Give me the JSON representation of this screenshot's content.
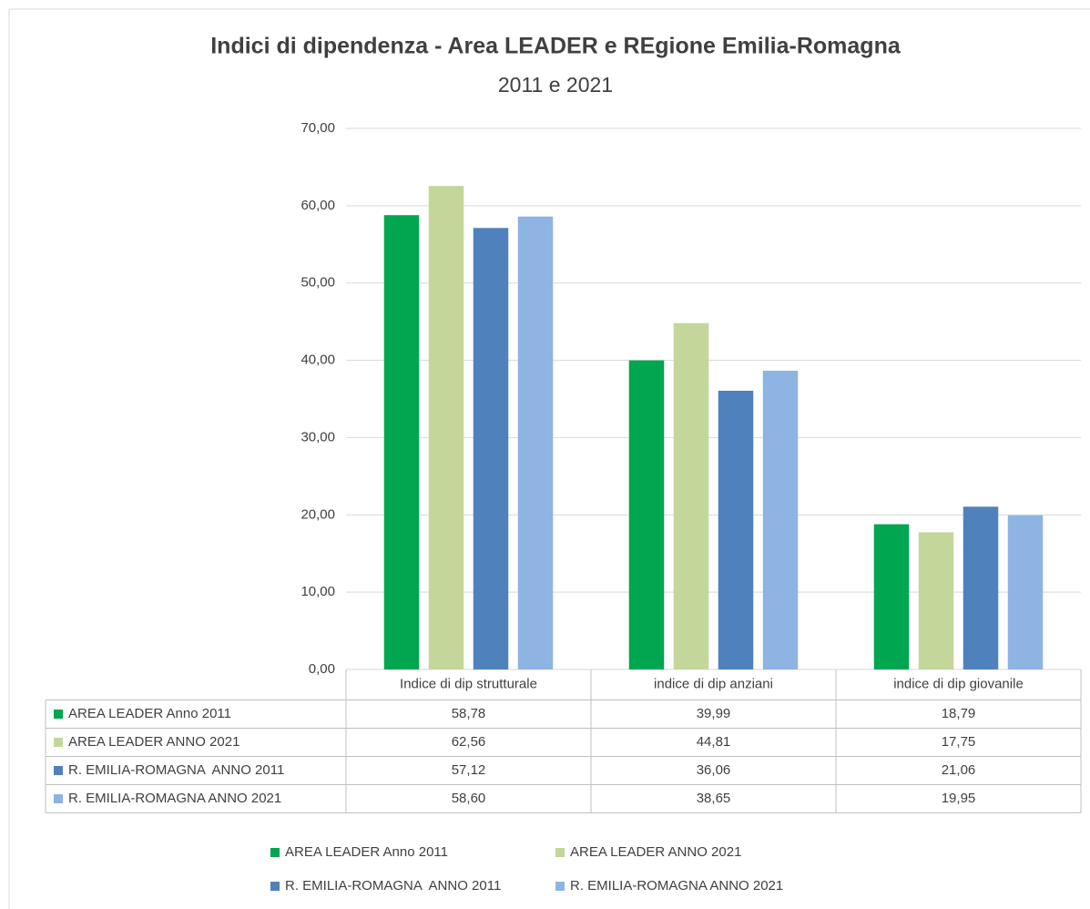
{
  "chart_data": {
    "type": "bar",
    "title": "Indici di dipendenza - Area LEADER e REgione Emilia-Romagna",
    "subtitle": "2011 e 2021",
    "categories": [
      "Indice di dip strutturale",
      "indice di dip anziani",
      "indice di dip giovanile"
    ],
    "series": [
      {
        "name": "AREA LEADER Anno 2011",
        "color": "#00a650",
        "values": [
          58.78,
          39.99,
          18.79
        ],
        "value_labels": [
          "58,78",
          "39,99",
          "18,79"
        ]
      },
      {
        "name": "AREA LEADER ANNO 2021",
        "color": "#c4d79b",
        "values": [
          62.56,
          44.81,
          17.75
        ],
        "value_labels": [
          "62,56",
          "44,81",
          "17,75"
        ]
      },
      {
        "name": "R. EMILIA-ROMAGNA  ANNO 2011",
        "color": "#4f81bd",
        "values": [
          57.12,
          36.06,
          21.06
        ],
        "value_labels": [
          "57,12",
          "36,06",
          "21,06"
        ]
      },
      {
        "name": "R. EMILIA-ROMAGNA ANNO 2021",
        "color": "#8db4e2",
        "values": [
          58.6,
          38.65,
          19.95
        ],
        "value_labels": [
          "58,60",
          "38,65",
          "19,95"
        ]
      }
    ],
    "ylim": [
      0,
      70
    ],
    "yticks": [
      {
        "value": 0,
        "label": "0,00"
      },
      {
        "value": 10,
        "label": "10,00"
      },
      {
        "value": 20,
        "label": "20,00"
      },
      {
        "value": 30,
        "label": "30,00"
      },
      {
        "value": 40,
        "label": "40,00"
      },
      {
        "value": 50,
        "label": "50,00"
      },
      {
        "value": 60,
        "label": "60,00"
      },
      {
        "value": 70,
        "label": "70,00"
      }
    ],
    "grid": true,
    "legend": "bottom"
  }
}
